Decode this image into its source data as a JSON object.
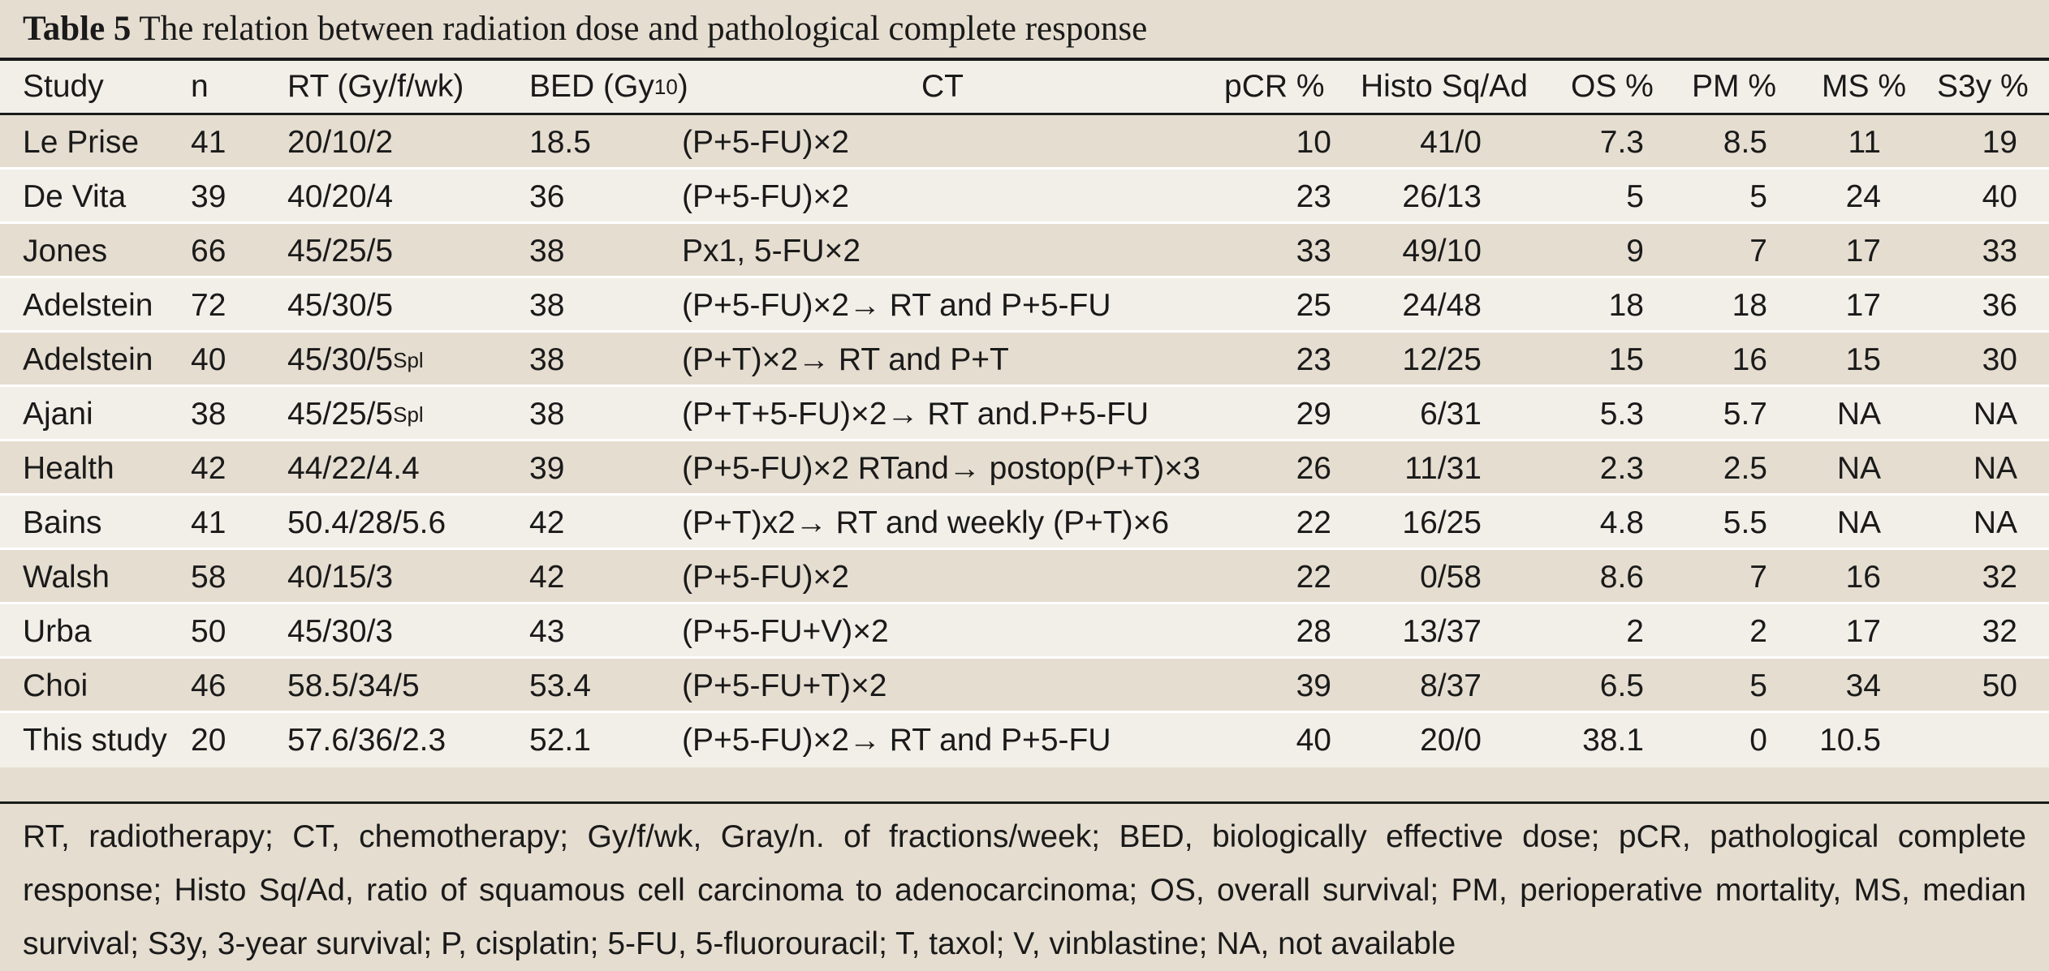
{
  "table": {
    "label": "Table 5",
    "caption": "The relation between radiation dose and pathological complete response",
    "headers": {
      "study": "Study",
      "n": "n",
      "rt": "RT (Gy/f/wk)",
      "bed_main": "BED (Gy",
      "bed_sub": "10",
      "bed_close": ")",
      "ct": "CT",
      "pcr": "pCR %",
      "histo": "Histo Sq/Ad",
      "os": "OS %",
      "pm": "PM %",
      "ms": "MS %",
      "s3y": "S3y %"
    },
    "rows": [
      {
        "study": "Le Prise",
        "n": "41",
        "rt": "20/10/2",
        "rt_sup": "",
        "bed": "18.5",
        "ct": "(P+5-FU)×2",
        "pcr": "10",
        "histo": "41/0",
        "os": "7.3",
        "pm": "8.5",
        "ms": "11",
        "s3y": "19"
      },
      {
        "study": "De Vita",
        "n": "39",
        "rt": "40/20/4",
        "rt_sup": "",
        "bed": "36",
        "ct": "(P+5-FU)×2",
        "pcr": "23",
        "histo": "26/13",
        "os": "5",
        "pm": "5",
        "ms": "24",
        "s3y": "40"
      },
      {
        "study": "Jones",
        "n": "66",
        "rt": "45/25/5",
        "rt_sup": "",
        "bed": "38",
        "ct": "Px1, 5-FU×2",
        "pcr": "33",
        "histo": "49/10",
        "os": "9",
        "pm": "7",
        "ms": "17",
        "s3y": "33"
      },
      {
        "study": "Adelstein",
        "n": "72",
        "rt": "45/30/5",
        "rt_sup": "",
        "bed": "38",
        "ct": "(P+5-FU)×2→ RT and P+5-FU",
        "pcr": "25",
        "histo": "24/48",
        "os": "18",
        "pm": "18",
        "ms": "17",
        "s3y": "36"
      },
      {
        "study": "Adelstein",
        "n": "40",
        "rt": "45/30/5",
        "rt_sup": "Spl",
        "bed": "38",
        "ct": "(P+T)×2→ RT and P+T",
        "pcr": "23",
        "histo": "12/25",
        "os": "15",
        "pm": "16",
        "ms": "15",
        "s3y": "30"
      },
      {
        "study": "Ajani",
        "n": "38",
        "rt": "45/25/5",
        "rt_sup": "Spl",
        "bed": "38",
        "ct": "(P+T+5-FU)×2→ RT and.P+5-FU",
        "pcr": "29",
        "histo": "6/31",
        "os": "5.3",
        "pm": "5.7",
        "ms": "NA",
        "s3y": "NA"
      },
      {
        "study": "Health",
        "n": "42",
        "rt": "44/22/4.4",
        "rt_sup": "",
        "bed": "39",
        "ct": "(P+5-FU)×2 RTand→ postop(P+T)×3",
        "pcr": "26",
        "histo": "11/31",
        "os": "2.3",
        "pm": "2.5",
        "ms": "NA",
        "s3y": "NA"
      },
      {
        "study": "Bains",
        "n": "41",
        "rt": "50.4/28/5.6",
        "rt_sup": "",
        "bed": "42",
        "ct": "(P+T)x2→ RT and weekly (P+T)×6",
        "pcr": "22",
        "histo": "16/25",
        "os": "4.8",
        "pm": "5.5",
        "ms": "NA",
        "s3y": "NA"
      },
      {
        "study": "Walsh",
        "n": "58",
        "rt": "40/15/3",
        "rt_sup": "",
        "bed": "42",
        "ct": "(P+5-FU)×2",
        "pcr": "22",
        "histo": "0/58",
        "os": "8.6",
        "pm": "7",
        "ms": "16",
        "s3y": "32"
      },
      {
        "study": "Urba",
        "n": "50",
        "rt": "45/30/3",
        "rt_sup": "",
        "bed": "43",
        "ct": "(P+5-FU+V)×2",
        "pcr": "28",
        "histo": "13/37",
        "os": "2",
        "pm": "2",
        "ms": "17",
        "s3y": "32"
      },
      {
        "study": "Choi",
        "n": "46",
        "rt": "58.5/34/5",
        "rt_sup": "",
        "bed": "53.4",
        "ct": "(P+5-FU+T)×2",
        "pcr": "39",
        "histo": "8/37",
        "os": "6.5",
        "pm": "5",
        "ms": "34",
        "s3y": "50"
      },
      {
        "study": "This study",
        "n": "20",
        "rt": "57.6/36/2.3",
        "rt_sup": "",
        "bed": "52.1",
        "ct": "(P+5-FU)×2→ RT and P+5-FU",
        "pcr": "40",
        "histo": "20/0",
        "os": "38.1",
        "pm": "0",
        "ms": "10.5",
        "s3y": ""
      }
    ],
    "footnote": "RT, radiotherapy; CT, chemotherapy; Gy/f/wk, Gray/n. of fractions/week; BED, biologically effective dose; pCR, pathological complete response; Histo Sq/Ad, ratio of squamous cell carcinoma to adenocarcinoma; OS, overall survival; PM, perioperative mortality, MS, median survival; S3y, 3-year survival; P, cisplatin; 5-FU, 5-fluorouracil; T, taxol; V, vinblastine; NA, not available"
  }
}
